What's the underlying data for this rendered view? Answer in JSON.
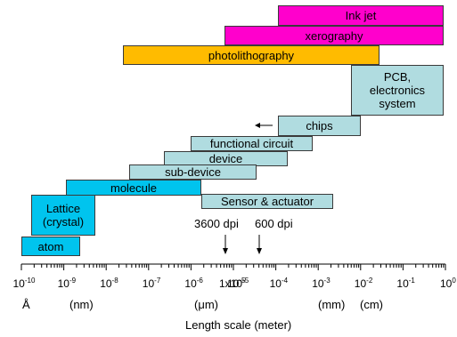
{
  "bars": {
    "inkjet": "Ink jet",
    "xerography": "xerography",
    "photolithography": "photolithography",
    "pcb": "PCB,\nelectronics\nsystem",
    "chips": "chips",
    "functional_circuit": "functional circuit",
    "device": "device",
    "sub_device": "sub-device",
    "molecule": "molecule",
    "sensor": "Sensor & actuator",
    "lattice": "Lattice\n(crystal)",
    "atom": "atom"
  },
  "markers": {
    "dpi3600": "3600 dpi",
    "dpi600": "600 dpi",
    "x10_5": "1x10"
  },
  "axis": {
    "title": "Length scale (meter)",
    "exponents": [
      "-10",
      "-9",
      "-8",
      "-7",
      "-6",
      "-5",
      "-4",
      "-3",
      "-2",
      "-1",
      "0"
    ],
    "unit_labels": {
      "angstrom": "Å",
      "nm": "(nm)",
      "um": "(μm)",
      "mm": "(mm)",
      "cm": "(cm)"
    }
  },
  "colors": {
    "magenta": "#ff00cc",
    "orange": "#ffbb00",
    "teal": "#b0dce0",
    "cyan": "#00c4ee"
  }
}
